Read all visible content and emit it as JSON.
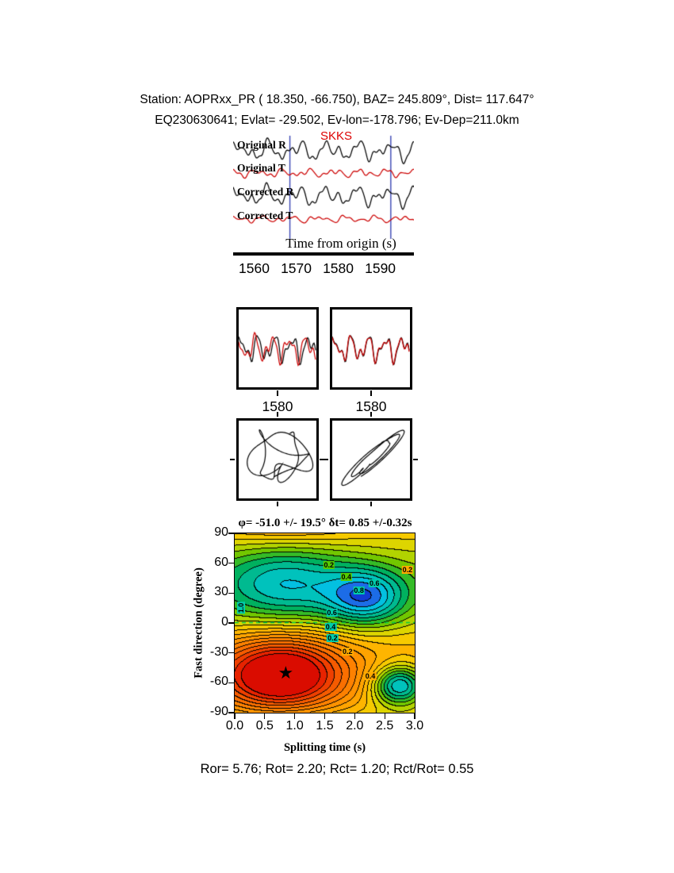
{
  "page": {
    "title_line1": "Station: AOPRxx_PR (  18.350,  -66.750), BAZ=  245.809°, Dist=  117.647°",
    "title_line2": "EQ230630641; Evlat= -29.502, Ev-lon=-178.796; Ev-Dep=211.0km",
    "footer": "Ror= 5.76; Rot= 2.20; Rct= 1.20; Rct/Rot= 0.55"
  },
  "chart_data": [
    {
      "id": "seismograms",
      "type": "line",
      "phase_label": "SKKS",
      "xlabel": "Time from origin (s)",
      "xticks": [
        "1560",
        "1570",
        "1580",
        "1590"
      ],
      "xtick_values": [
        1560,
        1570,
        1580,
        1590
      ],
      "x_range_s": [
        1555,
        1598
      ],
      "window_s": [
        1568.5,
        1592.5
      ],
      "window_color": "#3a46b4",
      "traces": [
        {
          "label": "Original R",
          "color": "#000000",
          "components": [
            [
              7,
              6,
              0.5
            ],
            [
              5,
              10,
              1.8
            ],
            [
              3.5,
              15,
              3.0
            ],
            [
              2,
              21,
              0.9
            ],
            [
              1.5,
              27,
              2.2
            ]
          ]
        },
        {
          "label": "Original T",
          "color": "#cc0000",
          "components": [
            [
              3,
              7,
              2.1
            ],
            [
              2,
              12,
              0.4
            ],
            [
              1.5,
              18,
              2.9
            ],
            [
              1,
              24,
              1.5
            ]
          ]
        },
        {
          "label": "Corrected R",
          "color": "#000000",
          "components": [
            [
              7,
              6,
              0.9
            ],
            [
              5,
              10,
              2.2
            ],
            [
              3.5,
              15,
              3.4
            ],
            [
              2,
              21,
              1.3
            ],
            [
              1.5,
              27,
              2.6
            ]
          ]
        },
        {
          "label": "Corrected T",
          "color": "#cc0000",
          "components": [
            [
              2.5,
              6.5,
              1.2
            ],
            [
              1.8,
              11,
              3.2
            ],
            [
              1.2,
              17,
              0.7
            ],
            [
              0.8,
              23,
              2.5
            ]
          ]
        }
      ]
    },
    {
      "id": "fast-slow-pair-original",
      "type": "line",
      "xtick": "1580",
      "scale": 1.35,
      "series": [
        {
          "name": "fast",
          "color": "#000000",
          "components": [
            [
              16,
              4.5,
              0.8
            ],
            [
              9,
              8,
              2.0
            ],
            [
              5,
              13,
              3.1
            ]
          ]
        },
        {
          "name": "slow",
          "color": "#cc0000",
          "components": [
            [
              16,
              4.5,
              1.9
            ],
            [
              9,
              8,
              3.1
            ],
            [
              5,
              13,
              4.2
            ]
          ]
        }
      ]
    },
    {
      "id": "fast-slow-pair-corrected",
      "type": "line",
      "xtick": "1580",
      "scale": 1.35,
      "series": [
        {
          "name": "fast",
          "color": "#000000",
          "components": [
            [
              16,
              4.5,
              0.8
            ],
            [
              9,
              8,
              2.0
            ],
            [
              5,
              13,
              3.1
            ]
          ]
        },
        {
          "name": "slow",
          "color": "#cc0000",
          "components": [
            [
              15.2,
              4.5,
              0.95
            ],
            [
              8.6,
              8,
              2.15
            ],
            [
              4.8,
              13,
              3.25
            ]
          ]
        }
      ]
    },
    {
      "id": "particle-motion-original",
      "type": "line",
      "scale": 1.1,
      "xc": [
        [
          26,
          2.5,
          0
        ],
        [
          11,
          4.5,
          1.0
        ],
        [
          6,
          8,
          2.2
        ]
      ],
      "yc": [
        [
          22,
          2.5,
          1.5
        ],
        [
          10,
          5.5,
          0.3
        ],
        [
          5,
          9,
          1.8
        ]
      ]
    },
    {
      "id": "particle-motion-corrected",
      "type": "line",
      "scale": 1.05,
      "xc": [
        [
          26,
          2.5,
          0
        ],
        [
          10,
          4.5,
          0.9
        ],
        [
          5,
          7.5,
          2.0
        ]
      ],
      "yc": [
        [
          24,
          2.5,
          0.35
        ],
        [
          9,
          4.5,
          1.25
        ],
        [
          5,
          7.5,
          2.35
        ]
      ]
    },
    {
      "id": "misfit-surface",
      "type": "heatmap",
      "title": "φ= -51.0 +/- 19.5°  δt= 0.85 +/-0.32s",
      "xlabel": "Splitting time (s)",
      "ylabel": "Fast direction (degree)",
      "xlim": [
        0,
        3
      ],
      "ylim": [
        -90,
        90
      ],
      "xticks": [
        "0.0",
        "0.5",
        "1.0",
        "1.5",
        "2.0",
        "2.5",
        "3.0"
      ],
      "xtick_values": [
        0,
        0.5,
        1,
        1.5,
        2,
        2.5,
        3
      ],
      "yticks": [
        "90",
        "60",
        "30",
        "0",
        "-30",
        "-60",
        "-90"
      ],
      "ytick_values": [
        90,
        60,
        30,
        0,
        -30,
        -60,
        -90
      ],
      "best": {
        "fast_deg": -51.0,
        "fast_err_deg": 19.5,
        "dt_s": 0.85,
        "dt_err_s": 0.32
      },
      "star": {
        "t": 0.85,
        "phi": -51,
        "glyph": "★"
      },
      "zero_line_color": "#00cc44",
      "contour_interval": 0.05,
      "surface": {
        "w0": 0.3,
        "w1": 0.7,
        "t0": 0.85,
        "tw": 1.1,
        "amp": 0.35,
        "phi0": -51,
        "wells": [
          {
            "a": -0.27,
            "t": 0.7,
            "tw": 1.0,
            "phi": -55,
            "pw": 38
          },
          {
            "a": 0.32,
            "t": 2.2,
            "tw": 0.65,
            "phi": 25,
            "pw": 28
          },
          {
            "a": 0.45,
            "t": 2.75,
            "tw": 0.45,
            "phi": -63,
            "pw": 20
          }
        ]
      },
      "palette": [
        [
          0.0,
          "#d40000"
        ],
        [
          0.08,
          "#e82500"
        ],
        [
          0.18,
          "#f75e00"
        ],
        [
          0.3,
          "#ff8a00"
        ],
        [
          0.42,
          "#ffb300"
        ],
        [
          0.5,
          "#f2d500"
        ],
        [
          0.57,
          "#b8d400"
        ],
        [
          0.64,
          "#5fc300"
        ],
        [
          0.72,
          "#00b05a"
        ],
        [
          0.8,
          "#00bfa8"
        ],
        [
          0.87,
          "#00c8e0"
        ],
        [
          0.93,
          "#1f64e8"
        ],
        [
          1.0,
          "#0826c8"
        ]
      ],
      "contour_labels": [
        {
          "t": 1.57,
          "phi": 58,
          "text": "0.2",
          "bg": "#55cc00"
        },
        {
          "t": 1.86,
          "phi": 46,
          "text": "0.4",
          "bg": "#55cc00"
        },
        {
          "t": 2.33,
          "phi": 40,
          "text": "0.6",
          "bg": "#00ccaa"
        },
        {
          "t": 2.07,
          "phi": 33,
          "text": "0.8",
          "bg": "#00ccaa"
        },
        {
          "t": 2.88,
          "phi": 53,
          "text": "0.2",
          "bg": "#ffaa00"
        },
        {
          "t": 0.1,
          "phi": 15,
          "text": "1.0",
          "bg": "#00ccaa",
          "rot": true
        },
        {
          "t": 1.62,
          "phi": 10,
          "text": "0.6",
          "bg": "#00ccaa"
        },
        {
          "t": 1.6,
          "phi": -4,
          "text": "0.4",
          "bg": "#00ccaa"
        },
        {
          "t": 1.63,
          "phi": -15,
          "text": "0.2",
          "bg": "#00ccaa"
        },
        {
          "t": 1.88,
          "phi": -29,
          "text": "0.2",
          "bg": "#ffaa00"
        },
        {
          "t": 2.26,
          "phi": -53,
          "text": "0.4",
          "bg": "#ffaa00"
        }
      ]
    }
  ]
}
